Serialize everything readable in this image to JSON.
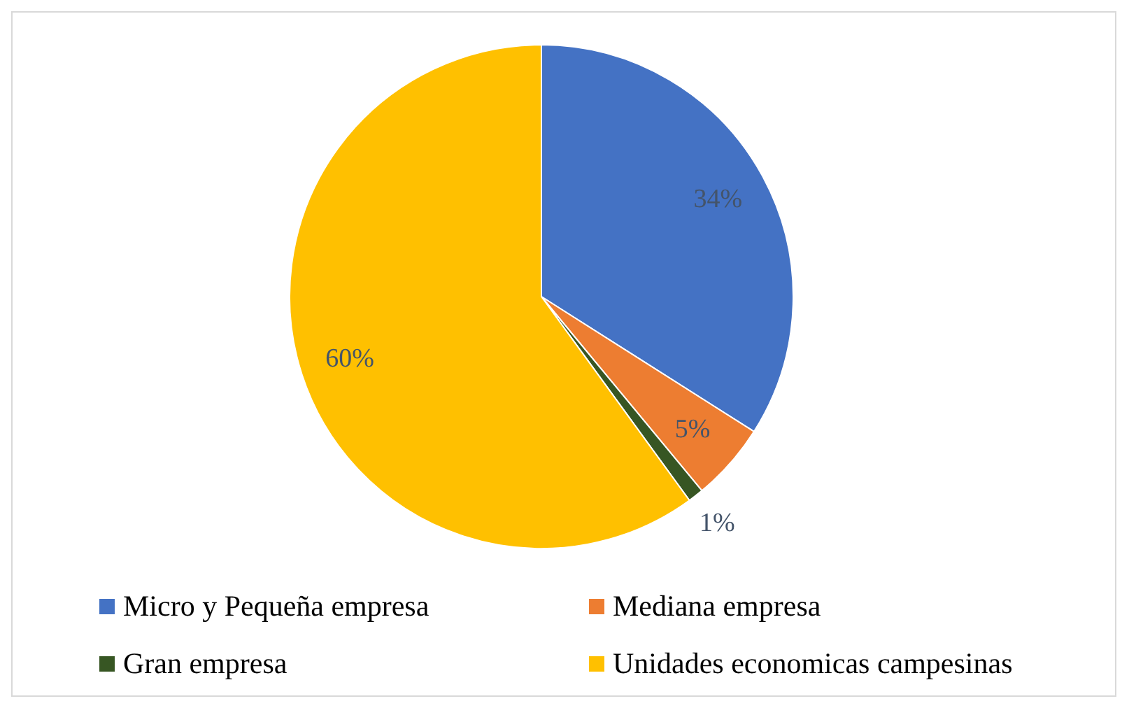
{
  "chart_data": {
    "type": "pie",
    "categories": [
      "Micro y Pequeña empresa",
      "Mediana empresa",
      "Gran empresa",
      "Unidades economicas campesinas"
    ],
    "values": [
      34,
      5,
      1,
      60
    ],
    "colors": [
      "#4472c4",
      "#ed7d31",
      "#375623",
      "#ffc000"
    ],
    "value_labels": [
      "34%",
      "5%",
      "1%",
      "60%"
    ],
    "legend": "bottom"
  }
}
